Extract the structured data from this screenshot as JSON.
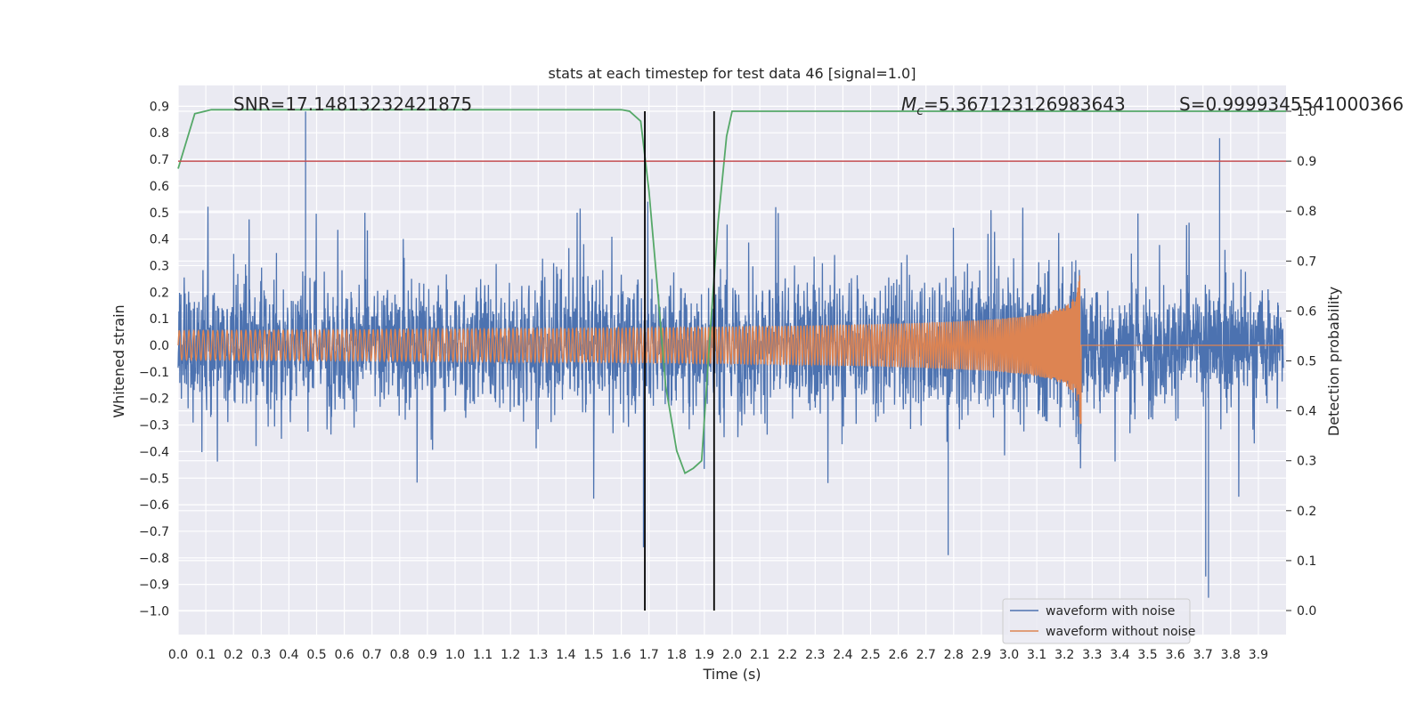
{
  "chart_data": {
    "type": "line",
    "title": "stats at each timestep for test data 46 [signal=1.0]",
    "xlabel": "Time (s)",
    "ylabel": "Whitened strain",
    "ylabel_right": "Detection probability",
    "xlim": [
      0.0,
      4.0
    ],
    "ylim": [
      -1.09,
      0.98
    ],
    "ylim_right": [
      -0.05,
      1.0
    ],
    "x_ticks": [
      "0.0",
      "0.1",
      "0.2",
      "0.3",
      "0.4",
      "0.5",
      "0.6",
      "0.7",
      "0.8",
      "0.9",
      "1.0",
      "1.1",
      "1.2",
      "1.3",
      "1.4",
      "1.5",
      "1.6",
      "1.7",
      "1.8",
      "1.9",
      "2.0",
      "2.1",
      "2.2",
      "2.3",
      "2.4",
      "2.5",
      "2.6",
      "2.7",
      "2.8",
      "2.9",
      "3.0",
      "3.1",
      "3.2",
      "3.3",
      "3.4",
      "3.5",
      "3.6",
      "3.7",
      "3.8",
      "3.9"
    ],
    "y_ticks": [
      "0.9",
      "0.8",
      "0.7",
      "0.6",
      "0.5",
      "0.4",
      "0.3",
      "0.2",
      "0.1",
      "0.0",
      "−0.1",
      "−0.2",
      "−0.3",
      "−0.4",
      "−0.5",
      "−0.6",
      "−0.7",
      "−0.8",
      "−0.9",
      "−1.0"
    ],
    "y_ticks_right": [
      "1.0",
      "0.9",
      "0.8",
      "0.7",
      "0.6",
      "0.5",
      "0.4",
      "0.3",
      "0.2",
      "0.1",
      "0.0"
    ],
    "annotations": {
      "snr": "SNR=17.14813232421875",
      "mc_symbol": "M",
      "mc_sub": "c",
      "mc_value": "=5.367123126983643",
      "s": "S=0.9999345541000366"
    },
    "threshold_right": 0.9,
    "vlines_x": [
      1.685,
      1.935
    ],
    "grid": true,
    "legend_position": "lower-right",
    "series": [
      {
        "name": "waveform with noise",
        "color": "#4c72b0",
        "description_axis": "left",
        "noise_sigma": 0.19,
        "notable_peaks": [
          [
            0.46,
            0.88
          ],
          [
            3.72,
            -0.95
          ],
          [
            3.71,
            -0.87
          ],
          [
            1.68,
            -0.76
          ],
          [
            2.78,
            -0.79
          ],
          [
            3.76,
            0.78
          ]
        ]
      },
      {
        "name": "waveform without noise",
        "color": "#dd8452",
        "description_axis": "left",
        "chirp_start_amplitude": 0.055,
        "chirp_merger_time": 3.26,
        "chirp_peak_amplitude": 0.4,
        "chirp_min_amplitude": -0.42,
        "post_merger_value": 0.0
      },
      {
        "name": "detection probability",
        "color": "#55a868",
        "axis": "right",
        "x": [
          0.0,
          0.06,
          0.12,
          0.2,
          0.4,
          0.8,
          1.2,
          1.6,
          1.63,
          1.67,
          1.7,
          1.73,
          1.76,
          1.8,
          1.83,
          1.86,
          1.89,
          1.92,
          1.95,
          1.98,
          2.0,
          2.2,
          2.6,
          3.0,
          3.5,
          4.0
        ],
        "y": [
          0.885,
          0.995,
          1.003,
          1.003,
          1.003,
          1.003,
          1.003,
          1.003,
          1.0,
          0.98,
          0.84,
          0.65,
          0.45,
          0.32,
          0.275,
          0.285,
          0.3,
          0.55,
          0.78,
          0.95,
          1.0,
          1.0,
          1.0,
          1.0,
          1.0,
          1.0
        ]
      }
    ],
    "threshold_color": "#c44e52",
    "vline_color": "#000000"
  }
}
